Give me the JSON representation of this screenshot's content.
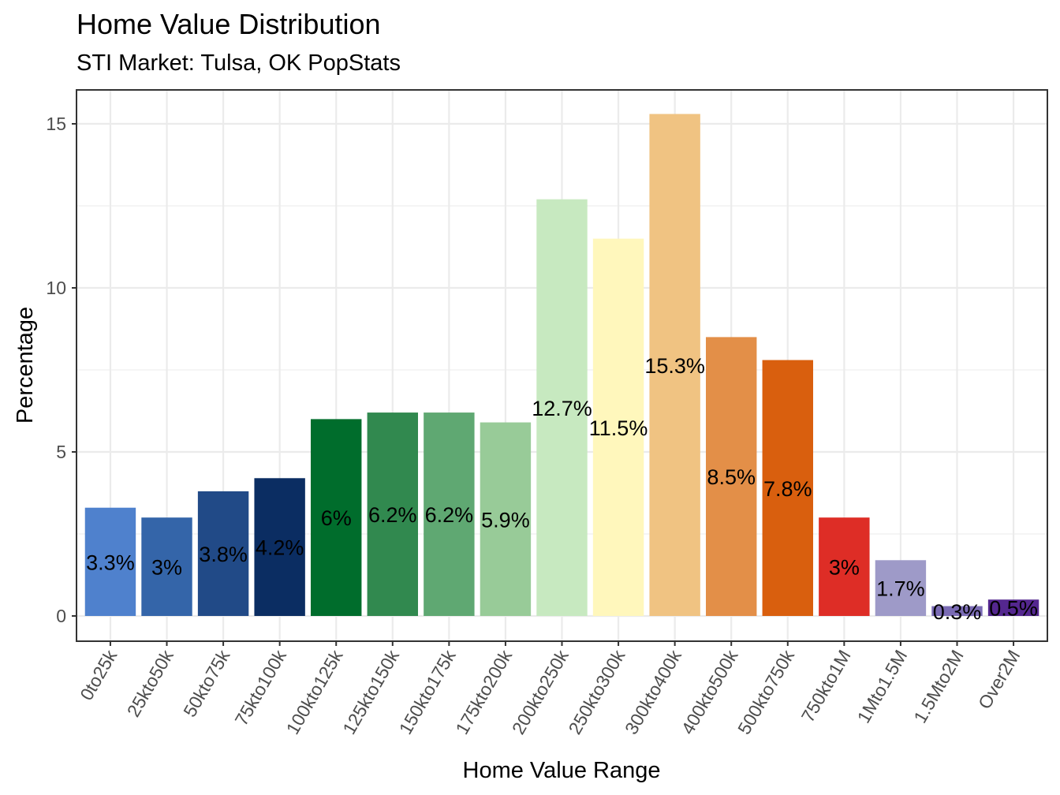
{
  "chart_data": {
    "type": "bar",
    "title": "Home Value Distribution",
    "subtitle": "STI Market: Tulsa, OK PopStats",
    "xlabel": "Home Value Range",
    "ylabel": "Percentage",
    "ylim": [
      0,
      16
    ],
    "yticks": [
      0,
      5,
      10,
      15
    ],
    "grid": true,
    "legend": "none",
    "categories": [
      "0to25k",
      "25kto50k",
      "50kto75k",
      "75kto100k",
      "100kto125k",
      "125kto150k",
      "150kto175k",
      "175kto200k",
      "200kto250k",
      "250kto300k",
      "300kto400k",
      "400kto500k",
      "500kto750k",
      "750kto1M",
      "1Mto1.5M",
      "1.5Mto2M",
      "Over2M"
    ],
    "values": [
      3.3,
      3.0,
      3.8,
      4.2,
      6.0,
      6.2,
      6.2,
      5.9,
      12.7,
      11.5,
      15.3,
      8.5,
      7.8,
      3.0,
      1.7,
      0.3,
      0.5
    ],
    "data_labels": [
      "3.3%",
      "3%",
      "3.8%",
      "4.2%",
      "6%",
      "6.2%",
      "6.2%",
      "5.9%",
      "12.7%",
      "11.5%",
      "15.3%",
      "8.5%",
      "7.8%",
      "3%",
      "1.7%",
      "0.3%",
      "0.5%"
    ],
    "colors": [
      "#4F81CD",
      "#3465A9",
      "#214A87",
      "#0B2D62",
      "#006D2C",
      "#31894F",
      "#5FA872",
      "#98CB98",
      "#C7E9C0",
      "#FFF7BC",
      "#F0C382",
      "#E38F48",
      "#D95F0E",
      "#DE2D26",
      "#9E9AC8",
      "#7A6BB4",
      "#54278F"
    ]
  }
}
